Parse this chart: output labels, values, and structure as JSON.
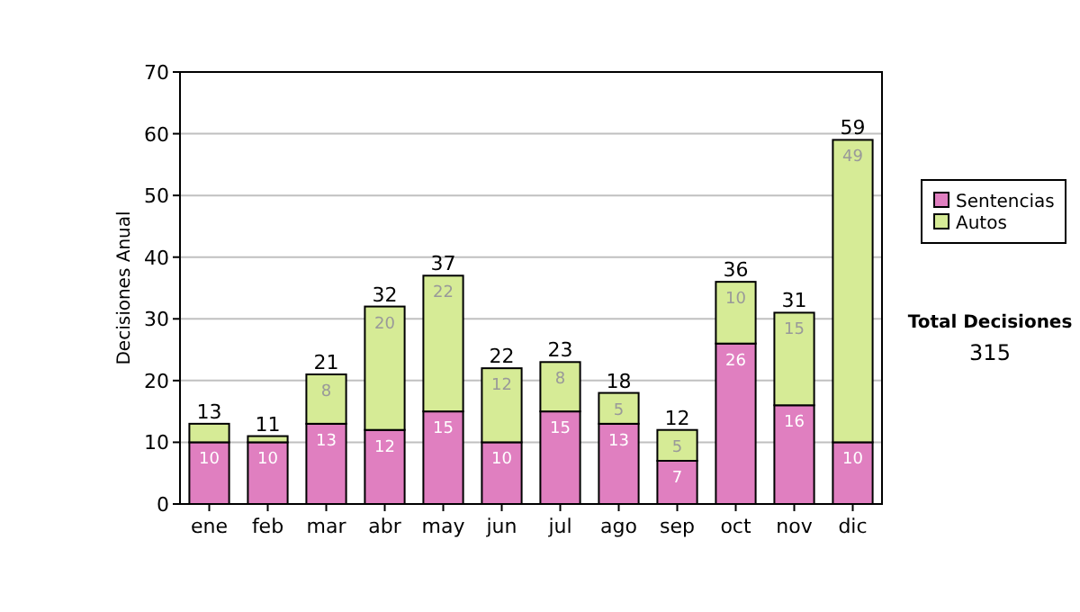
{
  "chart_data": {
    "type": "bar",
    "stacked": true,
    "ylabel": "Decisiones Anual",
    "categories": [
      "ene",
      "feb",
      "mar",
      "abr",
      "may",
      "jun",
      "jul",
      "ago",
      "sep",
      "oct",
      "nov",
      "dic"
    ],
    "series": [
      {
        "name": "Sentencias",
        "color": "#e07fc0",
        "values": [
          10,
          10,
          13,
          12,
          15,
          10,
          15,
          13,
          7,
          26,
          16,
          10
        ],
        "value_labels": [
          "10",
          "10",
          "13",
          "12",
          "15",
          "10",
          "15",
          "13",
          "7",
          "26",
          "16",
          "10"
        ]
      },
      {
        "name": "Autos",
        "color": "#d6eb96",
        "values": [
          3,
          1,
          8,
          20,
          22,
          12,
          8,
          5,
          5,
          10,
          15,
          49
        ],
        "value_labels": [
          null,
          null,
          "8",
          "20",
          "22",
          "12",
          "8",
          "5",
          "5",
          "10",
          "15",
          "49"
        ]
      }
    ],
    "totals": [
      "13",
      "11",
      "21",
      "32",
      "37",
      "22",
      "23",
      "18",
      "12",
      "36",
      "31",
      "59"
    ],
    "ylim": [
      0,
      70
    ],
    "yticks": [
      0,
      10,
      20,
      30,
      40,
      50,
      60,
      70
    ],
    "grid": "y",
    "legend": "right",
    "annotations": [
      "Total Decisiones",
      "315"
    ]
  }
}
